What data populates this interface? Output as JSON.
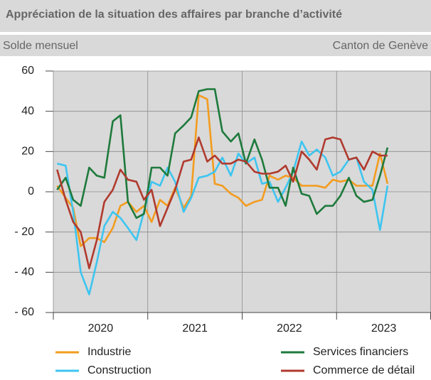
{
  "chart_data": {
    "type": "line",
    "title": "Appréciation de la situation des affaires par branche d’activité",
    "subtitle": "Solde mensuel",
    "region_label": "Canton de Genève",
    "categories": [
      "2020",
      "2021",
      "2022",
      "2023"
    ],
    "x": [
      2020.04,
      2020.13,
      2020.21,
      2020.29,
      2020.38,
      2020.46,
      2020.54,
      2020.63,
      2020.71,
      2020.79,
      2020.88,
      2020.96,
      2021.04,
      2021.13,
      2021.21,
      2021.29,
      2021.38,
      2021.46,
      2021.54,
      2021.63,
      2021.71,
      2021.79,
      2021.88,
      2021.96,
      2022.04,
      2022.13,
      2022.21,
      2022.29,
      2022.38,
      2022.46,
      2022.54,
      2022.63,
      2022.71,
      2022.79,
      2022.88,
      2022.96,
      2023.04,
      2023.13,
      2023.21,
      2023.29,
      2023.38,
      2023.46,
      2023.54
    ],
    "xlim": [
      2020,
      2024
    ],
    "xticks": [
      2020,
      2021,
      2022,
      2023,
      2024
    ],
    "ylim": [
      -60,
      60
    ],
    "yticks": [
      {
        "value": -60,
        "label": "- 60"
      },
      {
        "value": -40,
        "label": "- 40"
      },
      {
        "value": -20,
        "label": "- 20"
      },
      0,
      20,
      40,
      60
    ],
    "grid": true,
    "series": [
      {
        "name": "Industrie",
        "color": "#f39c1f",
        "values": [
          3,
          -3,
          -8,
          -27,
          -23,
          -23,
          -25,
          -18,
          -7,
          -5,
          -10,
          -7,
          -15,
          -4,
          -7,
          2,
          -8,
          -2,
          48,
          46,
          4,
          3,
          -1,
          -3,
          -7,
          -5,
          -4,
          8,
          6,
          8,
          7,
          3,
          3,
          3,
          2,
          6,
          5,
          6,
          3,
          3,
          3,
          19,
          4
        ]
      },
      {
        "name": "Construction",
        "color": "#3ec5f0",
        "values": [
          14,
          13,
          -10,
          -40,
          -51,
          -35,
          -17,
          -10,
          -13,
          -18,
          -24,
          -10,
          5,
          3,
          12,
          5,
          -10,
          -3,
          7,
          8,
          10,
          17,
          8,
          19,
          14,
          17,
          4,
          5,
          -5,
          2,
          10,
          25,
          18,
          21,
          17,
          8,
          10,
          16,
          17,
          5,
          1,
          -19,
          3
        ]
      },
      {
        "name": "Services financiers",
        "color": "#1e7a3c",
        "values": [
          1,
          7,
          -4,
          -7,
          12,
          8,
          7,
          35,
          38,
          -5,
          -13,
          -11,
          12,
          12,
          8,
          29,
          33,
          37,
          50,
          51,
          51,
          30,
          25,
          29,
          14,
          26,
          16,
          2,
          2,
          -7,
          12,
          -1,
          -2,
          -11,
          -7,
          -7,
          -2,
          7,
          -2,
          -5,
          -4,
          8,
          22
        ]
      },
      {
        "name": "Commerce de détail",
        "color": "#b03a2e",
        "values": [
          11,
          -4,
          -15,
          -20,
          -38,
          -24,
          -5,
          1,
          11,
          6,
          5,
          -4,
          1,
          -17,
          -8,
          1,
          15,
          16,
          27,
          15,
          18,
          14,
          14,
          16,
          15,
          10,
          9,
          9,
          10,
          13,
          5,
          20,
          16,
          11,
          26,
          27,
          26,
          16,
          17,
          11,
          20,
          18,
          18
        ]
      }
    ]
  }
}
